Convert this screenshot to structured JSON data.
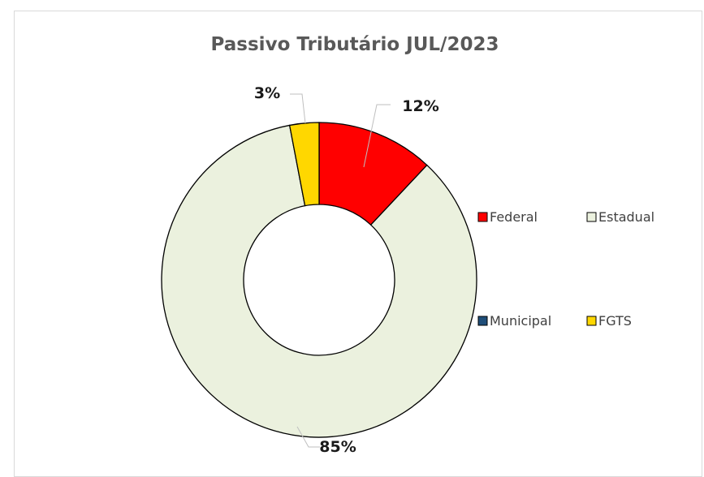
{
  "chart_data": {
    "type": "pie",
    "variant": "doughnut",
    "title": "Passivo Tributário JUL/2023",
    "slices": [
      {
        "name": "Federal",
        "value": 12,
        "label": "12%",
        "color": "#ff0000"
      },
      {
        "name": "Estadual",
        "value": 85,
        "label": "85%",
        "color": "#ebf1de"
      },
      {
        "name": "Municipal",
        "value": 0,
        "label": "",
        "color": "#1f4e79"
      },
      {
        "name": "FGTS",
        "value": 3,
        "label": "3%",
        "color": "#ffd700"
      }
    ],
    "legend_position": "right"
  }
}
